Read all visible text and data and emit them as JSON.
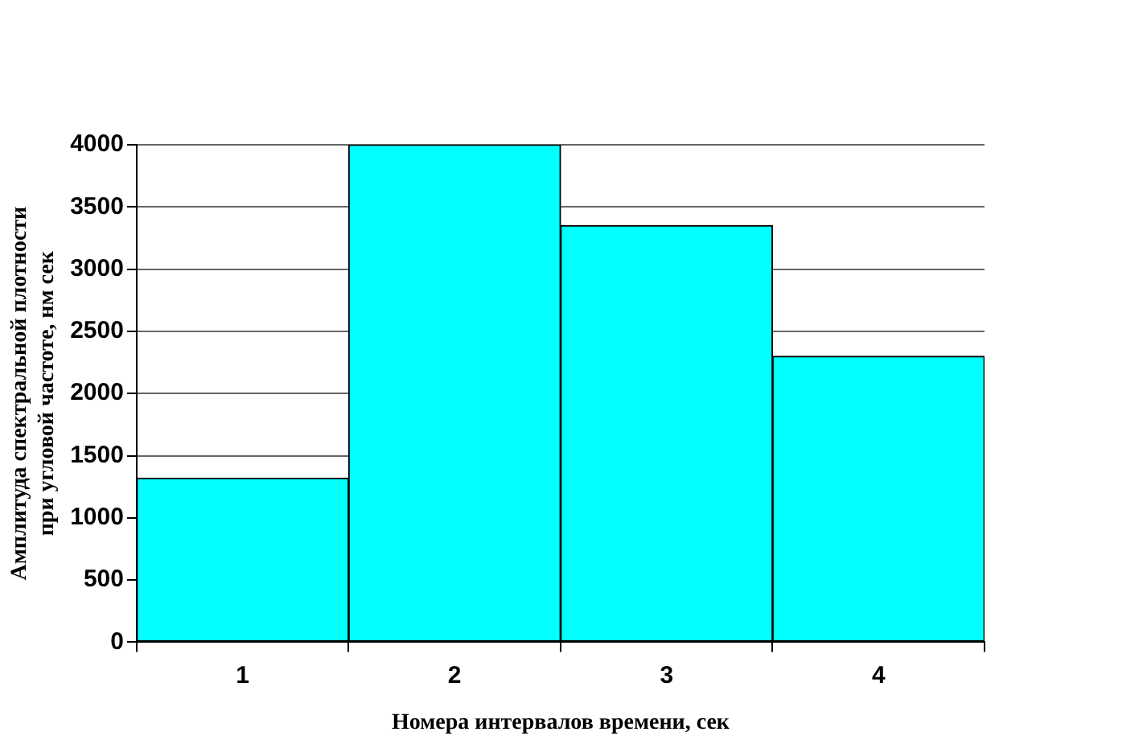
{
  "chart_data": {
    "type": "bar",
    "xlabel": "Номера интервалов времени, сек",
    "ylabel": "Амплитуда спектральной плотности\nпри угловой частоте, нм сек",
    "categories": [
      "1",
      "2",
      "3",
      "4"
    ],
    "values": [
      1320,
      4000,
      3350,
      2300
    ],
    "color": "#00ffff",
    "ylim": [
      0,
      4000
    ],
    "yticks": [
      0,
      500,
      1000,
      1500,
      2000,
      2500,
      3000,
      3500,
      4000
    ],
    "grid": "y"
  }
}
